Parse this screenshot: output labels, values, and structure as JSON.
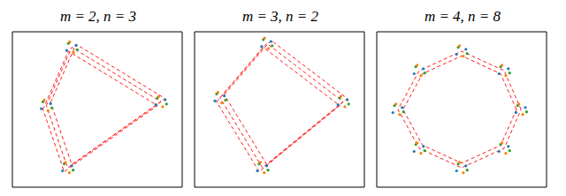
{
  "chart_data": [
    {
      "type": "scatter",
      "title": "m = 2, n = 3",
      "xlim": [
        -2,
        2
      ],
      "ylim": [
        -2,
        2
      ],
      "tick_labels": false,
      "grid": false,
      "series": [
        {
          "type": "line",
          "color": "#ff0000",
          "line_style": "dashed",
          "marker": "none",
          "x": [
            -1.2,
            -0.6,
            1.5,
            -0.7,
            -1.2
          ],
          "values": [
            0.1,
            1.6,
            0.2,
            -1.5,
            0.1
          ]
        },
        {
          "type": "line",
          "color": "#ff0000",
          "line_style": "dashed",
          "marker": "none",
          "x": [
            -1.1,
            -0.5,
            1.6,
            -0.6,
            -1.1
          ],
          "values": [
            0.18,
            1.68,
            0.28,
            -1.42,
            0.18
          ]
        },
        {
          "type": "line",
          "color": "#ff0000",
          "line_style": "dashed",
          "marker": "none",
          "x": [
            -1.28,
            -0.68,
            1.42,
            -0.78,
            -1.28
          ],
          "values": [
            0,
            1.5,
            0.1,
            -1.6,
            0
          ]
        },
        {
          "type": "scatter",
          "color": "#1f77b4",
          "marker": "dot",
          "x": [
            -1.1,
            -1.32,
            -0.5,
            -0.72,
            1.6,
            1.38,
            -0.6,
            -0.82
          ],
          "values": [
            0.15,
            0.02,
            1.65,
            1.52,
            0.25,
            0.12,
            -1.45,
            -1.58
          ]
        },
        {
          "type": "scatter",
          "color": "#2ca02c",
          "marker": "dot",
          "x": [
            -1.28,
            -1.07,
            -0.68,
            -0.47,
            1.42,
            1.63,
            -0.78,
            -0.57
          ],
          "values": [
            0.2,
            0.04,
            1.7,
            1.54,
            0.3,
            0.14,
            -1.4,
            -1.56
          ]
        },
        {
          "type": "scatter",
          "color": "#ff7f0e",
          "marker": "dot",
          "x": [
            -1.16,
            -1.25,
            -0.56,
            -0.65,
            1.54,
            1.45,
            -0.66,
            -0.75
          ],
          "values": [
            -0.03,
            0.24,
            1.47,
            1.74,
            0.07,
            0.34,
            -1.63,
            -1.36
          ]
        }
      ]
    },
    {
      "type": "scatter",
      "title": "m = 3, n = 2",
      "xlim": [
        -2,
        2
      ],
      "ylim": [
        -2,
        2
      ],
      "tick_labels": false,
      "grid": false,
      "series": [
        {
          "type": "line",
          "color": "#ff0000",
          "line_style": "dashed",
          "marker": "none",
          "x": [
            -1.4,
            -0.3,
            1.5,
            -0.4,
            -1.4
          ],
          "values": [
            0.3,
            1.7,
            0.2,
            -1.5,
            0.3
          ]
        },
        {
          "type": "line",
          "color": "#ff0000",
          "line_style": "dashed",
          "marker": "none",
          "x": [
            -1.3,
            -0.2,
            1.6,
            -0.3,
            -1.3
          ],
          "values": [
            0.38,
            1.78,
            0.28,
            -1.42,
            0.38
          ]
        },
        {
          "type": "line",
          "color": "#ff0000",
          "line_style": "dashed",
          "marker": "none",
          "x": [
            -1.48,
            -0.38,
            1.42,
            -0.48,
            -1.48
          ],
          "values": [
            0.2,
            1.6,
            0.1,
            -1.6,
            0.2
          ]
        },
        {
          "type": "scatter",
          "color": "#1f77b4",
          "marker": "dot",
          "x": [
            -1.3,
            -1.52,
            -0.2,
            -0.42,
            1.6,
            1.38,
            -0.3,
            -0.52
          ],
          "values": [
            0.35,
            0.22,
            1.75,
            1.62,
            0.25,
            0.12,
            -1.45,
            -1.58
          ]
        },
        {
          "type": "scatter",
          "color": "#2ca02c",
          "marker": "dot",
          "x": [
            -1.48,
            -1.27,
            -0.38,
            -0.17,
            1.42,
            1.63,
            -0.48,
            -0.27
          ],
          "values": [
            0.4,
            0.24,
            1.8,
            1.64,
            0.3,
            0.14,
            -1.4,
            -1.56
          ]
        },
        {
          "type": "scatter",
          "color": "#ff7f0e",
          "marker": "dot",
          "x": [
            -1.36,
            -1.45,
            -0.26,
            -0.35,
            1.54,
            1.45,
            -0.36,
            -0.45
          ],
          "values": [
            0.17,
            0.44,
            1.57,
            1.84,
            0.07,
            0.34,
            -1.63,
            -1.36
          ]
        }
      ]
    },
    {
      "type": "scatter",
      "title": "m = 4, n = 8",
      "xlim": [
        -2,
        2
      ],
      "ylim": [
        -2,
        2
      ],
      "tick_labels": false,
      "grid": false,
      "series": [
        {
          "type": "line",
          "color": "#ff0000",
          "line_style": "dashed",
          "marker": "none",
          "x": [
            1.4,
            1.0,
            0,
            -1.0,
            -1.5,
            -1.0,
            0,
            1.0,
            1.4
          ],
          "values": [
            0,
            1.0,
            1.5,
            1.0,
            0,
            -1.0,
            -1.5,
            -1.0,
            0
          ]
        },
        {
          "type": "line",
          "color": "#ff0000",
          "line_style": "dashed",
          "marker": "none",
          "x": [
            1.29,
            0.92,
            0,
            -0.92,
            -1.38,
            -0.92,
            0,
            0.92,
            1.29
          ],
          "values": [
            0,
            0.92,
            1.38,
            0.92,
            0,
            -0.92,
            -1.38,
            -0.92,
            0
          ]
        },
        {
          "type": "scatter",
          "color": "#1f77b4",
          "marker": "dot",
          "x": [
            1.5,
            1.28,
            1.1,
            0.88,
            0.1,
            -0.12,
            -0.9,
            -1.12,
            -1.4,
            -1.62,
            -0.9,
            -1.12,
            0.1,
            -0.12,
            1.1,
            0.88
          ],
          "values": [
            0.05,
            -0.08,
            1.05,
            0.92,
            1.55,
            1.42,
            1.05,
            0.92,
            0.05,
            -0.08,
            -0.95,
            -1.08,
            -1.45,
            -1.58,
            -0.95,
            -1.08
          ]
        },
        {
          "type": "scatter",
          "color": "#2ca02c",
          "marker": "dot",
          "x": [
            1.32,
            1.53,
            0.92,
            1.13,
            -0.08,
            0.13,
            -1.08,
            -0.87,
            -1.58,
            -1.37,
            -1.08,
            -0.87,
            -0.08,
            0.13,
            0.92,
            1.13
          ],
          "values": [
            0.1,
            -0.06,
            1.1,
            0.94,
            1.6,
            1.44,
            1.1,
            0.94,
            0.1,
            -0.06,
            -0.9,
            -1.06,
            -1.4,
            -1.56,
            -0.9,
            -1.06
          ]
        },
        {
          "type": "scatter",
          "color": "#ff7f0e",
          "marker": "dot",
          "x": [
            1.44,
            1.35,
            1.04,
            0.95,
            0.04,
            -0.05,
            -0.96,
            -1.05,
            -1.46,
            -1.55,
            -0.96,
            -1.05,
            0.04,
            -0.05,
            1.04,
            0.95
          ],
          "values": [
            -0.13,
            0.14,
            0.87,
            1.14,
            1.37,
            1.64,
            0.87,
            1.14,
            -0.13,
            0.14,
            -1.13,
            -0.86,
            -1.63,
            -1.36,
            -1.13,
            -0.86
          ]
        }
      ]
    }
  ]
}
